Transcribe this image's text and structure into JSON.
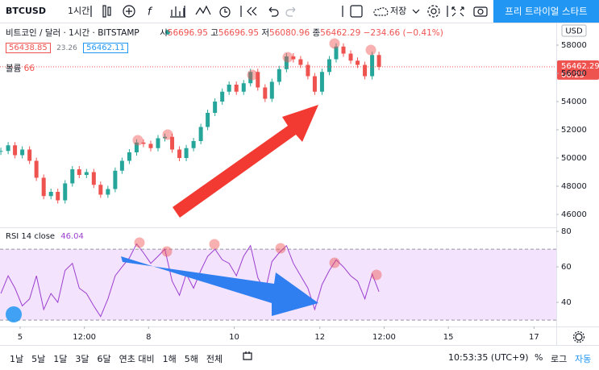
{
  "toolbar": {
    "symbol": "BTCUSD",
    "interval": "1시간",
    "save": "저장",
    "trial_button": "프리 트라이얼 스타트"
  },
  "legend": {
    "title": "비트코인 / 달러 · 1시간 · BITSTAMP",
    "open_label": "시",
    "open": "56696.95",
    "high_label": "고",
    "high": "56696.95",
    "low_label": "저",
    "low": "56080.96",
    "close_label": "종",
    "close": "56462.29",
    "change": "−234.66 (−0.41%)",
    "bid": "56438.85",
    "spread": "23.26",
    "ask": "56462.11",
    "volume_label": "볼륨",
    "volume": "66",
    "rsi_label": "RSI 14 close",
    "rsi": "46.04"
  },
  "price_axis": {
    "currency": "USD",
    "last_price": "56462.29",
    "countdown": "06:25"
  },
  "bottom_bar": {
    "ranges": [
      "1날",
      "5날",
      "1달",
      "3달",
      "6달",
      "연초 대비",
      "1해",
      "5해",
      "전체"
    ],
    "clock": "10:53:35 (UTC+9)",
    "percent": "%",
    "log": "로그",
    "auto": "자동"
  },
  "chart_data": [
    {
      "type": "candlestick",
      "title": "BTCUSD",
      "x": [
        4.55,
        4.72,
        4.88,
        5.05,
        5.22,
        5.38,
        5.55,
        5.72,
        5.88,
        6.05,
        6.22,
        6.38,
        6.55,
        6.72,
        6.88,
        7.05,
        7.22,
        7.38,
        7.55,
        7.72,
        7.88,
        8.05,
        8.22,
        8.38,
        8.55,
        8.72,
        8.88,
        9.05,
        9.22,
        9.38,
        9.55,
        9.72,
        9.88,
        10.05,
        10.22,
        10.38,
        10.55,
        10.72,
        10.88,
        11.05,
        11.22,
        11.38,
        11.55,
        11.72,
        11.88,
        12.05,
        12.22,
        12.38,
        12.55,
        12.72,
        12.88,
        13.05,
        13.22,
        13.38
      ],
      "series": [
        {
          "name": "BTCUSD",
          "up_color": "#26a69a",
          "down_color": "#ef5350",
          "values": [
            50500,
            50900,
            50200,
            50600,
            49800,
            48600,
            47300,
            47600,
            47000,
            48200,
            49200,
            48800,
            49000,
            48100,
            47400,
            47800,
            49100,
            49800,
            50400,
            51100,
            51000,
            50700,
            51400,
            51500,
            50600,
            50000,
            50700,
            51200,
            52200,
            53200,
            54000,
            54700,
            55200,
            54700,
            55300,
            56100,
            55000,
            54200,
            55400,
            56300,
            57200,
            57000,
            56600,
            55800,
            54700,
            56100,
            57000,
            57900,
            57400,
            56900,
            56600,
            55800,
            57300,
            56462.29
          ]
        }
      ],
      "xlim": [
        4.53,
        17.52
      ],
      "xticks": [
        {
          "value": 5,
          "label": "5"
        },
        {
          "value": 6.5,
          "label": "12:00"
        },
        8,
        10,
        12,
        {
          "value": 13.5,
          "label": "12:00"
        },
        15,
        17
      ],
      "ylim": [
        45086,
        59600
      ],
      "yticks": [
        58000,
        56000,
        54000,
        52000,
        50000,
        48000,
        46000
      ]
    },
    {
      "type": "line",
      "title": "RSI",
      "color": "#9c3fd0",
      "band": [
        30,
        70
      ],
      "band_color": "#f3e3fd",
      "values": [
        45,
        55,
        48,
        38,
        42,
        55,
        36,
        45,
        40,
        58,
        62,
        48,
        45,
        38,
        32,
        42,
        55,
        60,
        65,
        73,
        68,
        62,
        66,
        70,
        52,
        44,
        56,
        48,
        58,
        66,
        70,
        64,
        62,
        55,
        66,
        72,
        54,
        46,
        63,
        68,
        72,
        62,
        55,
        48,
        36,
        50,
        58,
        64,
        60,
        55,
        52,
        42,
        56,
        46.04
      ],
      "ylim": [
        26.4,
        82.3
      ],
      "yticks": [
        80,
        60,
        40
      ]
    }
  ]
}
